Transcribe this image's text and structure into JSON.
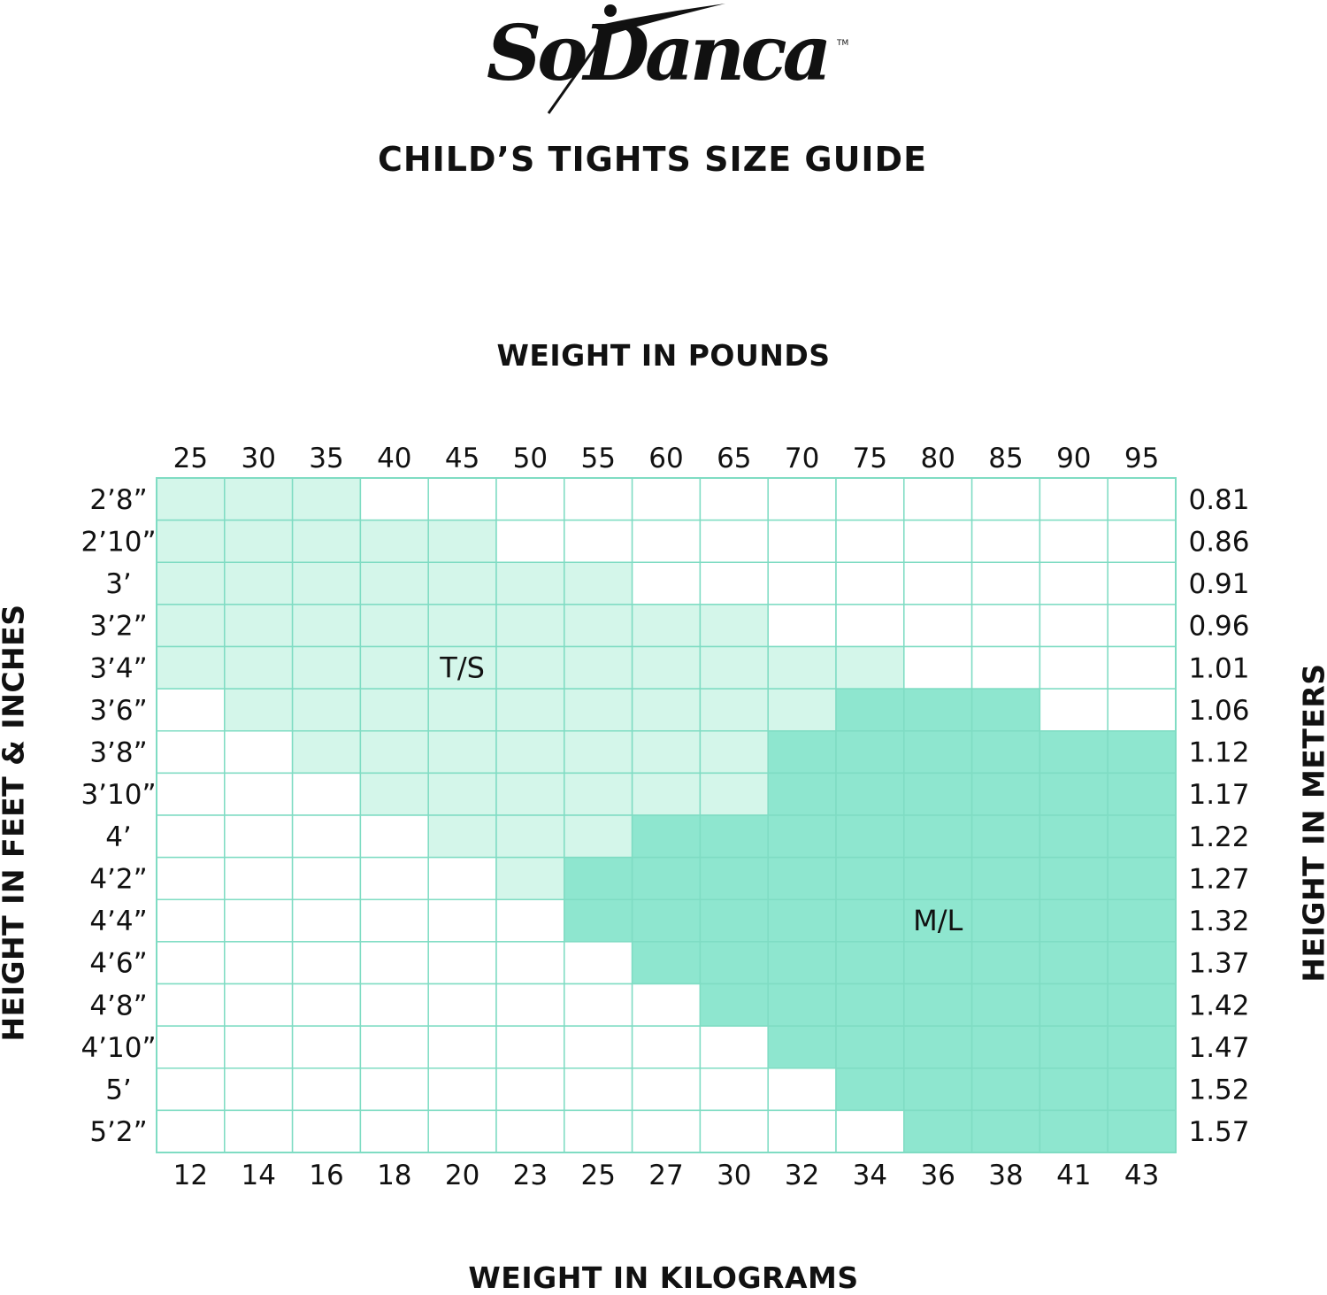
{
  "brand": {
    "logo_text": "SoDanca",
    "trademark": "TM"
  },
  "title": "CHILD’S TIGHTS SIZE GUIDE",
  "colors": {
    "grid": "#7fdcc3",
    "ts_fill": "#d4f6ea",
    "ml_fill": "#8ee6cf",
    "empty": "#ffffff"
  },
  "chart_data": {
    "type": "heatmap",
    "title": "CHILD’S TIGHTS SIZE GUIDE",
    "x_top_label": "WEIGHT IN POUNDS",
    "x_bottom_label": "WEIGHT IN KILOGRAMS",
    "y_left_label": "HEIGHT IN FEET & INCHES",
    "y_right_label": "HEIGHT IN METERS",
    "x_pounds": [
      "25",
      "30",
      "35",
      "40",
      "45",
      "50",
      "55",
      "60",
      "65",
      "70",
      "75",
      "80",
      "85",
      "90",
      "95"
    ],
    "x_kilograms": [
      "12",
      "14",
      "16",
      "18",
      "20",
      "23",
      "25",
      "27",
      "30",
      "32",
      "34",
      "36",
      "38",
      "41",
      "43"
    ],
    "y_feet_inches": [
      "2’8”",
      "2’10”",
      "3’",
      "3’2”",
      "3’4”",
      "3’6”",
      "3’8”",
      "3’10”",
      "4’",
      "4’2”",
      "4’4”",
      "4’6”",
      "4’8”",
      "4’10”",
      "5’",
      "5’2”"
    ],
    "y_meters": [
      "0.81",
      "0.86",
      "0.91",
      "0.96",
      "1.01",
      "1.06",
      "1.12",
      "1.17",
      "1.22",
      "1.27",
      "1.32",
      "1.37",
      "1.42",
      "1.47",
      "1.52",
      "1.57"
    ],
    "sizes": [
      {
        "name": "T/S",
        "label_row": 4,
        "label_col": 4.5
      },
      {
        "name": "M/L",
        "label_row": 10,
        "label_col": 11.5
      }
    ],
    "grid": [
      "111000000000000",
      "111110000000000",
      "111111100000000",
      "111111111000000",
      "111111111110000",
      "011111111122200",
      "001111111222222",
      "000111111222222",
      "000011122222222",
      "000001222222222",
      "000000222222222",
      "000000022222222",
      "000000002222222",
      "000000000222222",
      "000000000022222",
      "000000000002222"
    ]
  }
}
